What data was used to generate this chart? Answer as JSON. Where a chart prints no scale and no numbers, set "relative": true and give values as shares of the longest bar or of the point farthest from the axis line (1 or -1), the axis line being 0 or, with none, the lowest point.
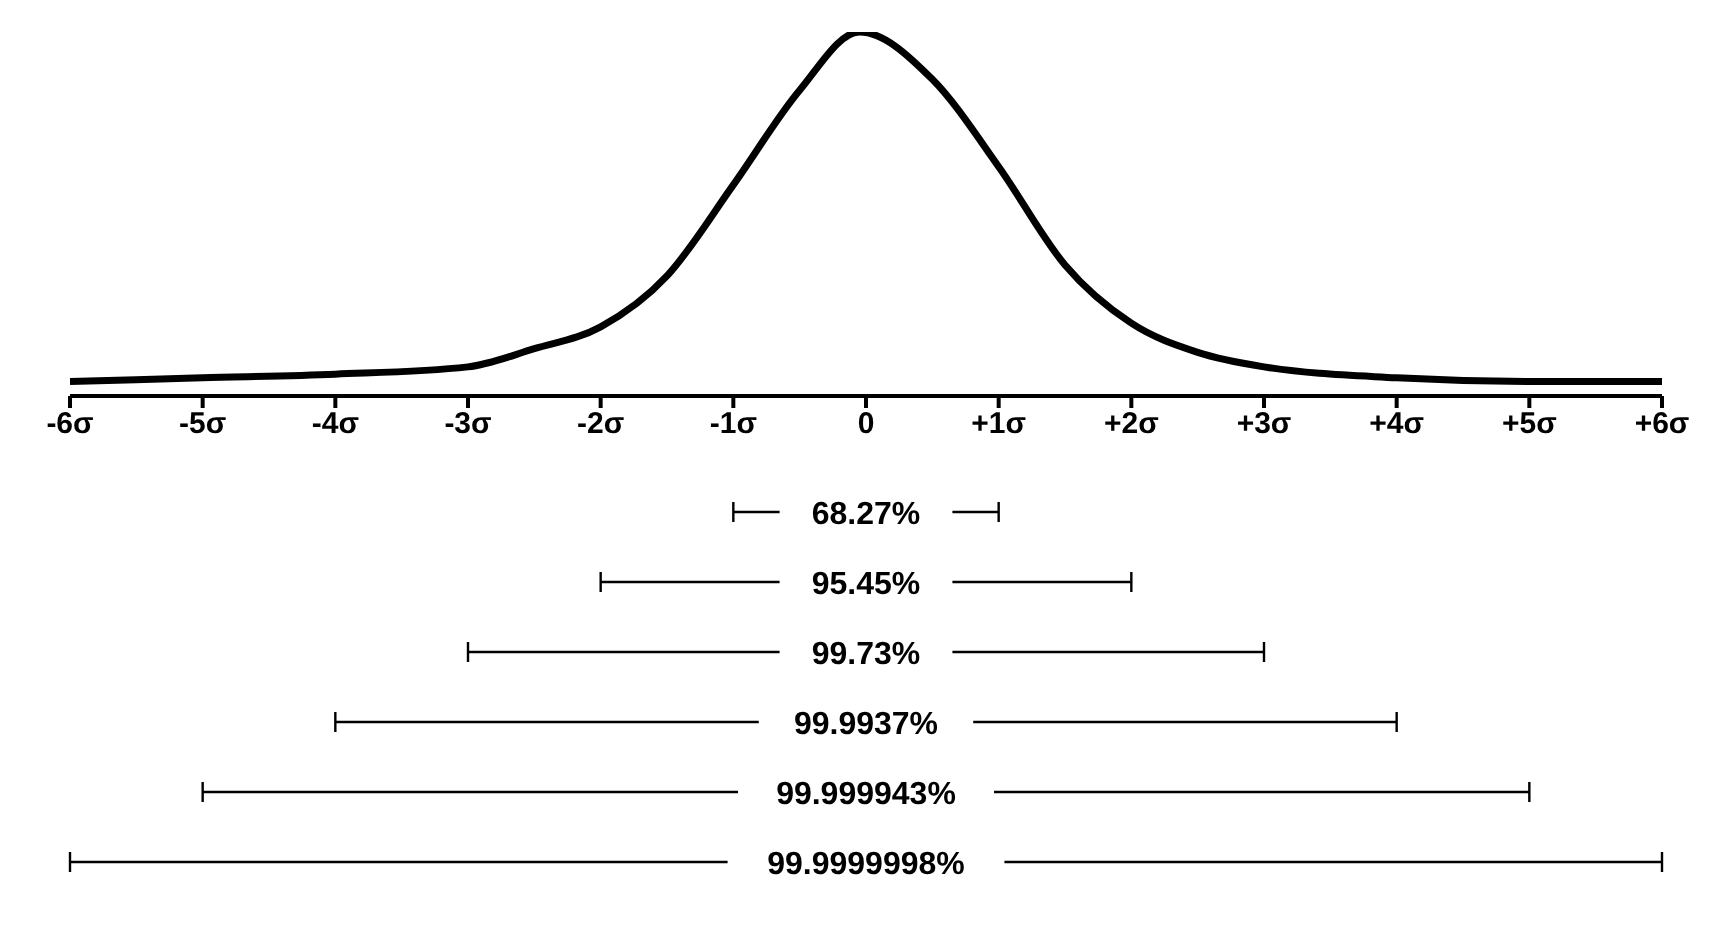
{
  "chart_data": {
    "type": "line",
    "relative": true,
    "xlim": [
      -6,
      6
    ],
    "xticks": [
      {
        "value": -6,
        "label": "-6σ"
      },
      {
        "value": -5,
        "label": "-5σ"
      },
      {
        "value": -4,
        "label": "-4σ"
      },
      {
        "value": -3,
        "label": "-3σ"
      },
      {
        "value": -2,
        "label": "-2σ"
      },
      {
        "value": -1,
        "label": "-1σ"
      },
      0,
      {
        "value": 1,
        "label": "+1σ"
      },
      {
        "value": 2,
        "label": "+2σ"
      },
      {
        "value": 3,
        "label": "+3σ"
      },
      {
        "value": 4,
        "label": "+4σ"
      },
      {
        "value": 5,
        "label": "+5σ"
      },
      {
        "value": 6,
        "label": "+6σ"
      }
    ],
    "x": [
      -6,
      -5,
      -4,
      -3,
      -2.5,
      -2,
      -1.5,
      -1,
      -0.5,
      -0.05,
      0.5,
      1,
      1.5,
      2,
      2.5,
      3,
      4,
      5,
      6
    ],
    "series": [
      {
        "color": "#000000",
        "values": [
          0.04,
          0.05,
          0.06,
          0.08,
          0.13,
          0.19,
          0.33,
          0.58,
          0.84,
          1,
          0.87,
          0.63,
          0.36,
          0.2,
          0.12,
          0.08,
          0.05,
          0.04,
          0.04
        ]
      }
    ],
    "grid": false,
    "legend": false,
    "marker": "none",
    "line_style": "solid",
    "annotations": [
      "68.27%",
      "95.45%",
      "99.73%",
      "99.9937%",
      "99.999943%",
      "99.9999998%"
    ]
  }
}
